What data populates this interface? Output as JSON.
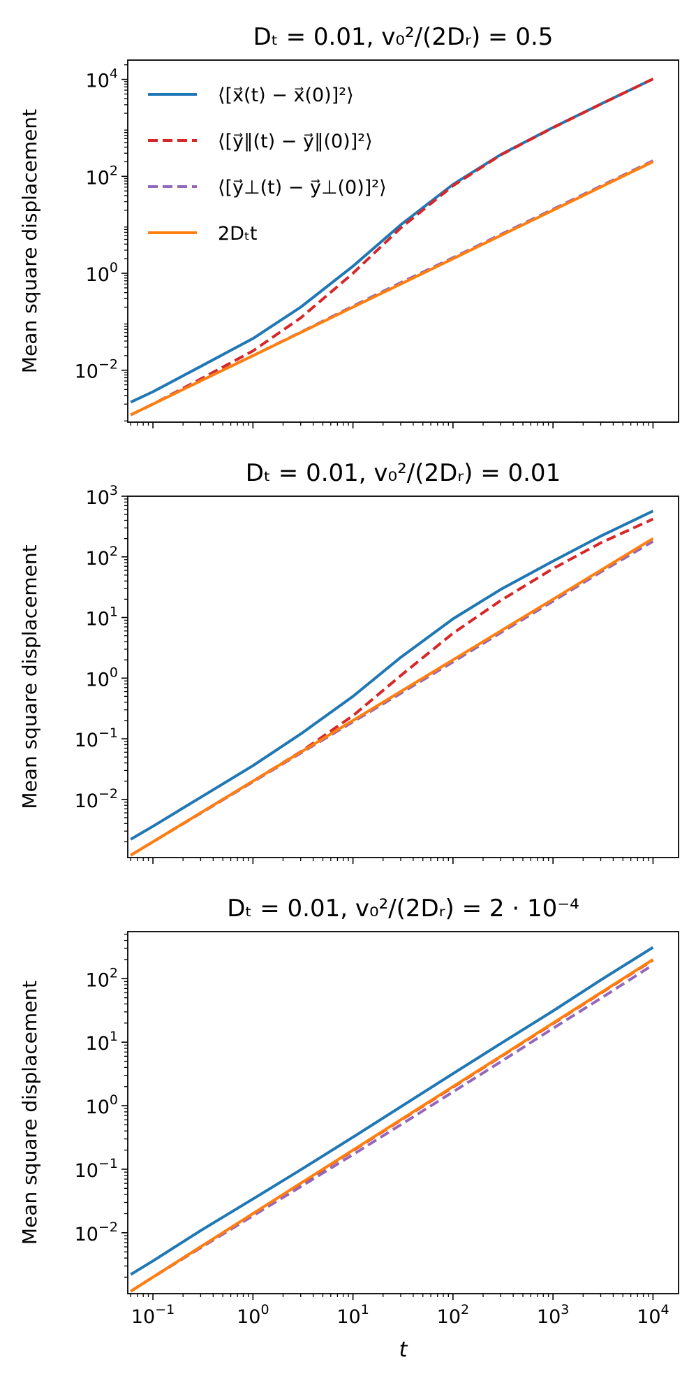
{
  "figure": {
    "xlabel": "t",
    "xticks": [
      {
        "value": 0.1,
        "base": "10",
        "exp": "−1"
      },
      {
        "value": 1,
        "base": "10",
        "exp": "0"
      },
      {
        "value": 10,
        "base": "10",
        "exp": "1"
      },
      {
        "value": 100,
        "base": "10",
        "exp": "2"
      },
      {
        "value": 1000,
        "base": "10",
        "exp": "3"
      },
      {
        "value": 10000,
        "base": "10",
        "exp": "4"
      }
    ]
  },
  "legend": {
    "items": [
      {
        "series": "x",
        "label": "⟨[x⃗(t) − x⃗(0)]²⟩",
        "color": "#1f77b4",
        "dash": "solid"
      },
      {
        "series": "ypar",
        "label": "⟨[y⃗∥(t) − y⃗∥(0)]²⟩",
        "color": "#d62728",
        "dash": "dashed"
      },
      {
        "series": "yperp",
        "label": "⟨[y⃗⊥(t) − y⃗⊥(0)]²⟩",
        "color": "#9467bd",
        "dash": "dashed"
      },
      {
        "series": "diff",
        "label": "2Dₜt",
        "color": "#ff7f0e",
        "dash": "solid"
      }
    ]
  },
  "chart_data": [
    {
      "type": "line",
      "title": "Dₜ = 0.01, v₀²/(2Dᵣ) = 0.5",
      "xlabel": "",
      "ylabel": "Mean square displacement",
      "xscale": "log",
      "yscale": "log",
      "xlim": [
        0.056,
        18000
      ],
      "ylim": [
        0.00085,
        25000
      ],
      "yticks": [
        {
          "value": 0.01,
          "base": "10",
          "exp": "−2"
        },
        {
          "value": 1,
          "base": "10",
          "exp": "0"
        },
        {
          "value": 100,
          "base": "10",
          "exp": "2"
        },
        {
          "value": 10000,
          "base": "10",
          "exp": "4"
        }
      ],
      "x": [
        0.06,
        0.1,
        0.3,
        1,
        3,
        10,
        30,
        100,
        300,
        1000,
        3000,
        10000
      ],
      "series": [
        {
          "name": "x",
          "values": [
            0.0022,
            0.0036,
            0.012,
            0.045,
            0.2,
            1.4,
            10,
            68,
            280,
            1020,
            3100,
            10200
          ]
        },
        {
          "name": "ypar",
          "values": [
            0.0012,
            0.002,
            0.0066,
            0.025,
            0.12,
            1.0,
            8.6,
            64,
            275,
            1010,
            3080,
            10200
          ]
        },
        {
          "name": "yperp",
          "values": [
            0.0012,
            0.002,
            0.0061,
            0.02,
            0.061,
            0.21,
            0.64,
            2.1,
            6.3,
            21,
            63,
            210
          ]
        },
        {
          "name": "diff",
          "values": [
            0.0012,
            0.002,
            0.006,
            0.02,
            0.06,
            0.2,
            0.6,
            2,
            6,
            20,
            60,
            200
          ]
        }
      ]
    },
    {
      "type": "line",
      "title": "Dₜ = 0.01, v₀²/(2Dᵣ) = 0.01",
      "xlabel": "",
      "ylabel": "Mean square displacement",
      "xscale": "log",
      "yscale": "log",
      "xlim": [
        0.056,
        18000
      ],
      "ylim": [
        0.0011,
        1000
      ],
      "yticks": [
        {
          "value": 0.01,
          "base": "10",
          "exp": "−2"
        },
        {
          "value": 0.1,
          "base": "10",
          "exp": "−1"
        },
        {
          "value": 1,
          "base": "10",
          "exp": "0"
        },
        {
          "value": 10,
          "base": "10",
          "exp": "1"
        },
        {
          "value": 100,
          "base": "10",
          "exp": "2"
        },
        {
          "value": 1000,
          "base": "10",
          "exp": "3"
        }
      ],
      "x": [
        0.06,
        0.1,
        0.3,
        1,
        3,
        10,
        30,
        100,
        300,
        1000,
        3000,
        10000
      ],
      "series": [
        {
          "name": "x",
          "values": [
            0.0022,
            0.0036,
            0.0108,
            0.036,
            0.12,
            0.5,
            2.2,
            9.5,
            29,
            85,
            220,
            570
          ]
        },
        {
          "name": "ypar",
          "values": [
            0.0012,
            0.002,
            0.006,
            0.02,
            0.061,
            0.24,
            1.1,
            5.5,
            19,
            64,
            170,
            420
          ]
        },
        {
          "name": "yperp",
          "values": [
            0.0012,
            0.002,
            0.0059,
            0.0195,
            0.058,
            0.19,
            0.56,
            1.85,
            5.6,
            18.5,
            56,
            180
          ]
        },
        {
          "name": "diff",
          "values": [
            0.0012,
            0.002,
            0.006,
            0.02,
            0.06,
            0.2,
            0.6,
            2,
            6,
            20,
            60,
            200
          ]
        }
      ]
    },
    {
      "type": "line",
      "title": "Dₜ = 0.01, v₀²/(2Dᵣ) = 2 · 10⁻⁴",
      "xlabel": "t",
      "ylabel": "Mean square displacement",
      "xscale": "log",
      "yscale": "log",
      "xlim": [
        0.056,
        18000
      ],
      "ylim": [
        0.0011,
        550
      ],
      "yticks": [
        {
          "value": 0.01,
          "base": "10",
          "exp": "−2"
        },
        {
          "value": 0.1,
          "base": "10",
          "exp": "−1"
        },
        {
          "value": 1,
          "base": "10",
          "exp": "0"
        },
        {
          "value": 10,
          "base": "10",
          "exp": "1"
        },
        {
          "value": 100,
          "base": "10",
          "exp": "2"
        }
      ],
      "x": [
        0.06,
        0.1,
        0.3,
        1,
        3,
        10,
        30,
        100,
        300,
        1000,
        3000,
        10000
      ],
      "series": [
        {
          "name": "x",
          "values": [
            0.0022,
            0.0036,
            0.0108,
            0.034,
            0.098,
            0.32,
            0.96,
            3.2,
            9.5,
            31,
            95,
            310
          ]
        },
        {
          "name": "ypar",
          "values": [
            0.0012,
            0.002,
            0.006,
            0.0198,
            0.059,
            0.196,
            0.59,
            1.96,
            5.9,
            19.6,
            59,
            196
          ]
        },
        {
          "name": "yperp",
          "values": [
            0.0012,
            0.002,
            0.0058,
            0.0185,
            0.053,
            0.17,
            0.5,
            1.65,
            4.9,
            16.5,
            49,
            165
          ]
        },
        {
          "name": "diff",
          "values": [
            0.0012,
            0.002,
            0.006,
            0.02,
            0.06,
            0.2,
            0.6,
            2,
            6,
            20,
            60,
            200
          ]
        }
      ]
    }
  ]
}
